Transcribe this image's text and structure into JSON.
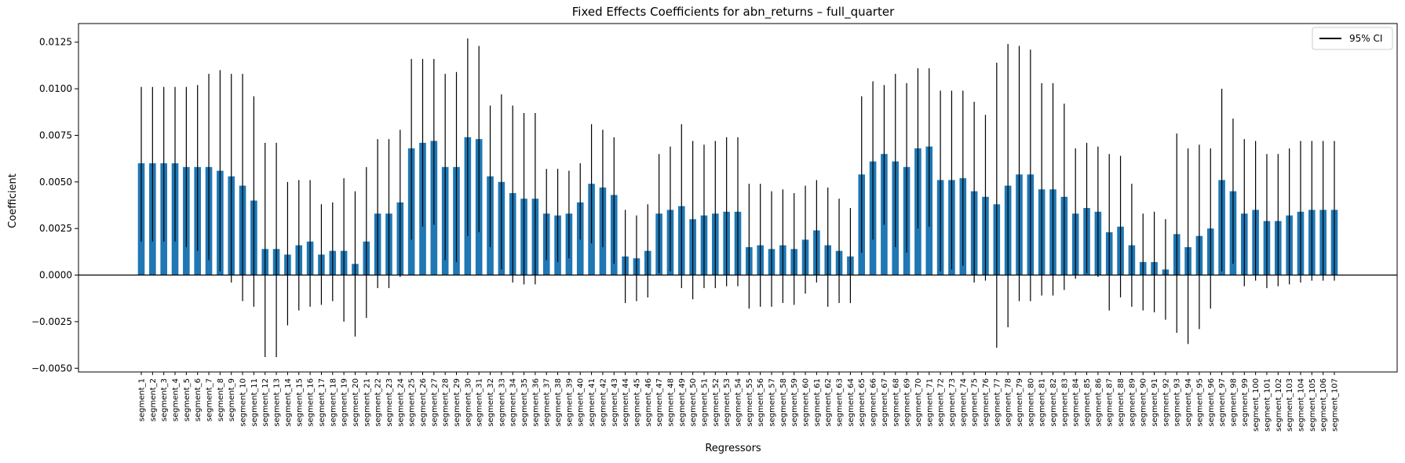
{
  "chart_data": {
    "type": "bar",
    "title": "Fixed Effects Coefficients for abn_returns – full_quarter",
    "xlabel": "Regressors",
    "ylabel": "Coefficient",
    "ylim": [
      -0.0052,
      0.0135
    ],
    "yticks": [
      -0.005,
      -0.0025,
      0.0,
      0.0025,
      0.005,
      0.0075,
      0.01,
      0.0125
    ],
    "ytick_labels": [
      "−0.0050",
      "−0.0025",
      "0.0000",
      "0.0025",
      "0.0050",
      "0.0075",
      "0.0100",
      "0.0125"
    ],
    "bar_color": "#1f77b4",
    "errorbar_color": "#000000",
    "legend": {
      "label": "95% CI",
      "position": "top-right"
    },
    "grid": false,
    "categories": [
      "segment_1",
      "segment_2",
      "segment_3",
      "segment_4",
      "segment_5",
      "segment_6",
      "segment_7",
      "segment_8",
      "segment_9",
      "segment_10",
      "segment_11",
      "segment_12",
      "segment_13",
      "segment_14",
      "segment_15",
      "segment_16",
      "segment_17",
      "segment_18",
      "segment_19",
      "segment_20",
      "segment_21",
      "segment_22",
      "segment_23",
      "segment_24",
      "segment_25",
      "segment_26",
      "segment_27",
      "segment_28",
      "segment_29",
      "segment_30",
      "segment_31",
      "segment_32",
      "segment_33",
      "segment_34",
      "segment_35",
      "segment_36",
      "segment_37",
      "segment_38",
      "segment_39",
      "segment_40",
      "segment_41",
      "segment_42",
      "segment_43",
      "segment_44",
      "segment_45",
      "segment_46",
      "segment_47",
      "segment_48",
      "segment_49",
      "segment_50",
      "segment_51",
      "segment_52",
      "segment_53",
      "segment_54",
      "segment_55",
      "segment_56",
      "segment_57",
      "segment_58",
      "segment_59",
      "segment_60",
      "segment_61",
      "segment_62",
      "segment_63",
      "segment_64",
      "segment_65",
      "segment_66",
      "segment_67",
      "segment_68",
      "segment_69",
      "segment_70",
      "segment_71",
      "segment_72",
      "segment_73",
      "segment_74",
      "segment_75",
      "segment_76",
      "segment_77",
      "segment_78",
      "segment_79",
      "segment_80",
      "segment_81",
      "segment_82",
      "segment_83",
      "segment_84",
      "segment_85",
      "segment_86",
      "segment_87",
      "segment_88",
      "segment_89",
      "segment_90",
      "segment_91",
      "segment_92",
      "segment_93",
      "segment_94",
      "segment_95",
      "segment_96",
      "segment_97",
      "segment_98",
      "segment_99",
      "segment_100",
      "segment_101",
      "segment_102",
      "segment_103",
      "segment_104",
      "segment_105",
      "segment_106",
      "segment_107"
    ],
    "values": [
      0.006,
      0.006,
      0.006,
      0.006,
      0.0058,
      0.0058,
      0.0058,
      0.0056,
      0.0053,
      0.0048,
      0.004,
      0.0014,
      0.0014,
      0.0011,
      0.0016,
      0.0018,
      0.0011,
      0.0013,
      0.0013,
      0.0006,
      0.0018,
      0.0033,
      0.0033,
      0.0039,
      0.0068,
      0.0071,
      0.0072,
      0.0058,
      0.0058,
      0.0074,
      0.0073,
      0.0053,
      0.005,
      0.0044,
      0.0041,
      0.0041,
      0.0033,
      0.0032,
      0.0033,
      0.0039,
      0.0049,
      0.0047,
      0.0043,
      0.001,
      0.0009,
      0.0013,
      0.0033,
      0.0035,
      0.0037,
      0.003,
      0.0032,
      0.0033,
      0.0034,
      0.0034,
      0.0015,
      0.0016,
      0.0014,
      0.0016,
      0.0014,
      0.0019,
      0.0024,
      0.0016,
      0.0013,
      0.001,
      0.0054,
      0.0061,
      0.0065,
      0.0061,
      0.0058,
      0.0068,
      0.0069,
      0.0051,
      0.0051,
      0.0052,
      0.0045,
      0.0042,
      0.0038,
      0.0048,
      0.0054,
      0.0054,
      0.0046,
      0.0046,
      0.0042,
      0.0033,
      0.0036,
      0.0034,
      0.0023,
      0.0026,
      0.0016,
      0.0007,
      0.0007,
      0.0003,
      0.0022,
      0.0015,
      0.0021,
      0.0025,
      0.0051,
      0.0045,
      0.0033,
      0.0035,
      0.0029,
      0.0029,
      0.0032,
      0.0034,
      0.0035,
      0.0035,
      0.0035
    ],
    "ci_lower": [
      0.0018,
      0.0018,
      0.0018,
      0.0018,
      0.0015,
      0.0013,
      0.0008,
      0.0002,
      -0.0004,
      -0.0014,
      -0.0017,
      -0.0044,
      -0.0044,
      -0.0027,
      -0.0019,
      -0.0017,
      -0.0016,
      -0.0014,
      -0.0025,
      -0.0033,
      -0.0023,
      -0.0007,
      -0.0007,
      -0.0001,
      0.0019,
      0.0026,
      0.0027,
      0.0008,
      0.0007,
      0.0021,
      0.0023,
      0.0015,
      0.0003,
      -0.0004,
      -0.0005,
      -0.0005,
      0.0008,
      0.0007,
      0.0009,
      0.0019,
      0.0017,
      0.0015,
      0.0006,
      -0.0015,
      -0.0014,
      -0.0012,
      0.0001,
      0.0002,
      -0.0007,
      -0.0013,
      -0.0007,
      -0.0007,
      -0.0006,
      -0.0006,
      -0.0018,
      -0.0017,
      -0.0017,
      -0.0015,
      -0.0016,
      -0.001,
      -0.0004,
      -0.0017,
      -0.0015,
      -0.0015,
      0.0012,
      0.0019,
      0.0027,
      0.0015,
      0.0012,
      0.0025,
      0.0026,
      0.0002,
      0.0003,
      0.0005,
      -0.0004,
      -0.0003,
      -0.0039,
      -0.0028,
      -0.0014,
      -0.0014,
      -0.0011,
      -0.0011,
      -0.0008,
      -0.0002,
      0.0001,
      -0.0001,
      -0.0019,
      -0.0012,
      -0.0017,
      -0.0019,
      -0.002,
      -0.0024,
      -0.0031,
      -0.0037,
      -0.0029,
      -0.0018,
      0.0002,
      0.0006,
      -0.0006,
      -0.0003,
      -0.0007,
      -0.0006,
      -0.0005,
      -0.0004,
      -0.0003,
      -0.0003,
      -0.0003
    ],
    "ci_upper": [
      0.0101,
      0.0101,
      0.0101,
      0.0101,
      0.0101,
      0.0102,
      0.0108,
      0.011,
      0.0108,
      0.0108,
      0.0096,
      0.0071,
      0.0071,
      0.005,
      0.0051,
      0.0051,
      0.0038,
      0.0039,
      0.0052,
      0.0045,
      0.0058,
      0.0073,
      0.0073,
      0.0078,
      0.0116,
      0.0116,
      0.0116,
      0.0108,
      0.0109,
      0.0127,
      0.0123,
      0.0091,
      0.0097,
      0.0091,
      0.0087,
      0.0087,
      0.0057,
      0.0057,
      0.0056,
      0.006,
      0.0081,
      0.0078,
      0.0074,
      0.0035,
      0.0032,
      0.0038,
      0.0065,
      0.0069,
      0.0081,
      0.0072,
      0.007,
      0.0072,
      0.0074,
      0.0074,
      0.0049,
      0.0049,
      0.0045,
      0.0046,
      0.0044,
      0.0048,
      0.0051,
      0.0047,
      0.0041,
      0.0036,
      0.0096,
      0.0104,
      0.0102,
      0.0108,
      0.0103,
      0.0111,
      0.0111,
      0.0099,
      0.0099,
      0.0099,
      0.0093,
      0.0086,
      0.0114,
      0.0124,
      0.0123,
      0.0121,
      0.0103,
      0.0103,
      0.0092,
      0.0068,
      0.0071,
      0.0069,
      0.0065,
      0.0064,
      0.0049,
      0.0033,
      0.0034,
      0.003,
      0.0076,
      0.0068,
      0.007,
      0.0068,
      0.01,
      0.0084,
      0.0073,
      0.0072,
      0.0065,
      0.0065,
      0.0068,
      0.0072,
      0.0072,
      0.0072,
      0.0072
    ]
  }
}
